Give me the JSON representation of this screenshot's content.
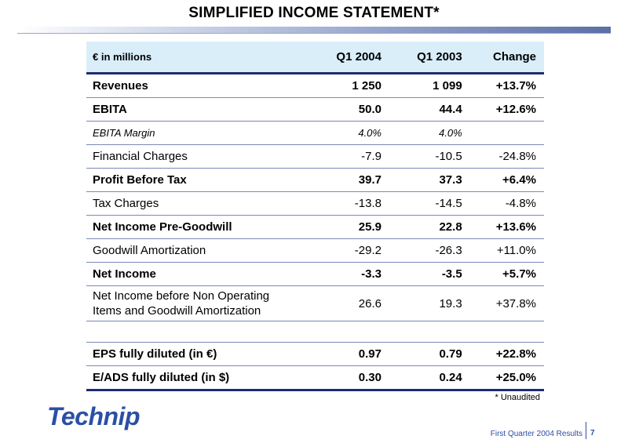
{
  "title": "SIMPLIFIED INCOME STATEMENT*",
  "table": {
    "header": {
      "label": "€ in millions",
      "q1_2004": "Q1 2004",
      "q1_2003": "Q1 2003",
      "change": "Change"
    },
    "rows": [
      {
        "label": "Revenues",
        "q1_2004": "1 250",
        "q1_2003": "1 099",
        "change": "+13.7%"
      },
      {
        "label": "EBITA",
        "q1_2004": "50.0",
        "q1_2003": "44.4",
        "change": "+12.6%"
      },
      {
        "label": "EBITA Margin",
        "q1_2004": "4.0%",
        "q1_2003": "4.0%",
        "change": ""
      },
      {
        "label": "Financial Charges",
        "q1_2004": "-7.9",
        "q1_2003": "-10.5",
        "change": "-24.8%"
      },
      {
        "label": "Profit Before Tax",
        "q1_2004": "39.7",
        "q1_2003": "37.3",
        "change": "+6.4%"
      },
      {
        "label": "Tax Charges",
        "q1_2004": "-13.8",
        "q1_2003": "-14.5",
        "change": "-4.8%"
      },
      {
        "label": "Net Income Pre-Goodwill",
        "q1_2004": "25.9",
        "q1_2003": "22.8",
        "change": "+13.6%"
      },
      {
        "label": "Goodwill Amortization",
        "q1_2004": "-29.2",
        "q1_2003": "-26.3",
        "change": "+11.0%"
      },
      {
        "label": "Net Income",
        "q1_2004": "-3.3",
        "q1_2003": "-3.5",
        "change": "+5.7%"
      },
      {
        "label_line1": "Net Income before Non Operating",
        "label_line2": "Items and Goodwill Amortization",
        "q1_2004": "26.6",
        "q1_2003": "19.3",
        "change": "+37.8%"
      },
      {
        "label": "EPS fully diluted (in €)",
        "q1_2004": "0.97",
        "q1_2003": "0.79",
        "change": "+22.8%"
      },
      {
        "label": "E/ADS fully diluted (in $)",
        "q1_2004": "0.30",
        "q1_2003": "0.24",
        "change": "+25.0%"
      }
    ]
  },
  "footnote": "* Unaudited",
  "logo": "Technip",
  "footer": {
    "text": "First Quarter 2004 Results",
    "page": "7"
  },
  "colors": {
    "header_bg": "#d9eef9",
    "rule": "#1c2e6e",
    "brand": "#2b4fa5"
  }
}
